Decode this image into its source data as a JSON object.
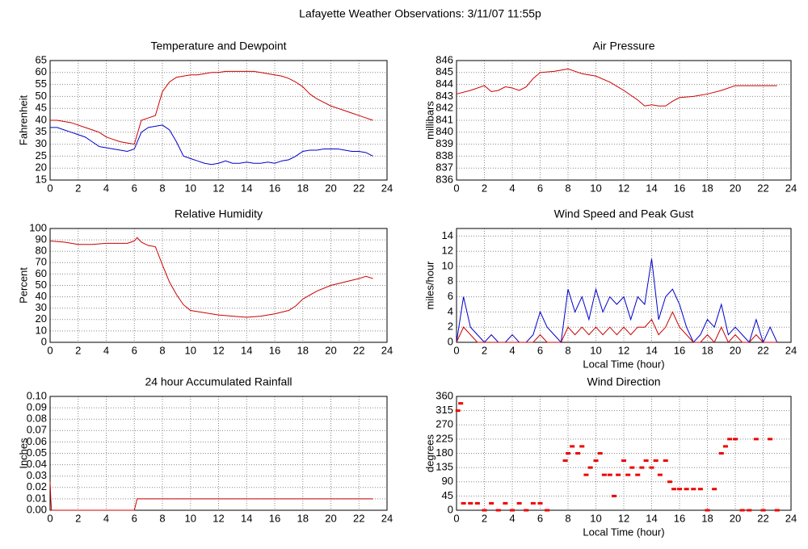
{
  "title": "Lafayette Weather Observations: 3/11/07 11:55p",
  "chart_data": [
    {
      "type": "line",
      "title": "Temperature and Dewpoint",
      "ylabel": "Fahrenheit",
      "x": [
        0,
        0.5,
        1,
        1.5,
        2,
        2.5,
        3,
        3.5,
        4,
        4.5,
        5,
        5.5,
        6,
        6.5,
        7,
        7.5,
        8,
        8.5,
        9,
        9.5,
        10,
        10.5,
        11,
        11.5,
        12,
        12.5,
        13,
        13.5,
        14,
        14.5,
        15,
        15.5,
        16,
        16.5,
        17,
        17.5,
        18,
        18.5,
        19,
        19.5,
        20,
        20.5,
        21,
        21.5,
        22,
        22.5,
        23
      ],
      "series": [
        {
          "color": "#cc0000",
          "values": [
            40,
            40,
            39.5,
            39,
            38,
            37,
            36,
            35,
            33,
            32,
            31,
            30.5,
            30,
            40,
            41,
            42,
            52,
            56,
            58,
            58.5,
            59,
            59,
            59.5,
            60,
            60,
            60.5,
            60.5,
            60.5,
            60.5,
            60.5,
            60,
            59.5,
            59,
            58.5,
            57.5,
            56,
            54,
            51,
            49,
            47.5,
            46,
            45,
            44,
            43,
            42,
            41,
            40
          ]
        },
        {
          "color": "#0000cc",
          "values": [
            37,
            37,
            36,
            35,
            34,
            33,
            31,
            29,
            28.5,
            28,
            27.5,
            27,
            28,
            35,
            37,
            37.5,
            38,
            36,
            31,
            25,
            24,
            23,
            22,
            21.5,
            22,
            23,
            22,
            22,
            22.5,
            22,
            22,
            22.5,
            22,
            23,
            23.5,
            25,
            27,
            27.5,
            27.5,
            28,
            28,
            28,
            27.5,
            27,
            27,
            26.5,
            25
          ]
        }
      ],
      "xlim": [
        0,
        24
      ],
      "xticks": [
        0,
        2,
        4,
        6,
        8,
        10,
        12,
        14,
        16,
        18,
        20,
        22,
        24
      ],
      "ylim": [
        15,
        65
      ],
      "yticks": [
        15,
        20,
        25,
        30,
        35,
        40,
        45,
        50,
        55,
        60,
        65
      ],
      "grid": true
    },
    {
      "type": "line",
      "title": "Air Pressure",
      "ylabel": "millibars",
      "x": [
        0,
        1,
        2,
        2.5,
        3,
        3.5,
        4,
        4.5,
        5,
        5.5,
        6,
        7,
        8,
        8.5,
        9,
        10,
        11,
        12,
        13,
        13.5,
        14,
        14.5,
        15,
        15.5,
        16,
        17,
        18,
        19,
        20,
        21,
        22,
        23
      ],
      "series": [
        {
          "color": "#cc0000",
          "values": [
            843.2,
            843.5,
            843.9,
            843.4,
            843.5,
            843.8,
            843.7,
            843.5,
            843.8,
            844.5,
            845.0,
            845.1,
            845.3,
            845.1,
            844.9,
            844.7,
            844.2,
            843.5,
            842.7,
            842.2,
            842.3,
            842.2,
            842.2,
            842.6,
            842.9,
            843.0,
            843.2,
            843.5,
            843.9,
            843.9,
            843.9,
            843.9
          ]
        }
      ],
      "xlim": [
        0,
        24
      ],
      "xticks": [
        0,
        2,
        4,
        6,
        8,
        10,
        12,
        14,
        16,
        18,
        20,
        22,
        24
      ],
      "ylim": [
        836,
        846
      ],
      "yticks": [
        836,
        837,
        838,
        839,
        840,
        841,
        842,
        843,
        844,
        845,
        846
      ],
      "grid": true
    },
    {
      "type": "line",
      "title": "Relative Humidity",
      "ylabel": "Percent",
      "x": [
        0,
        1,
        2,
        3,
        4,
        5,
        5.5,
        6,
        6.2,
        6.5,
        7,
        7.5,
        8,
        8.5,
        9,
        9.5,
        10,
        11,
        12,
        13,
        14,
        15,
        16,
        17,
        17.5,
        18,
        19,
        20,
        21,
        22,
        22.5,
        23
      ],
      "series": [
        {
          "color": "#cc0000",
          "values": [
            89,
            88,
            86,
            86,
            87,
            87,
            87,
            89,
            92,
            88,
            85,
            84,
            68,
            53,
            42,
            33,
            28,
            26,
            24,
            23,
            22,
            23,
            25,
            28,
            32,
            38,
            45,
            50,
            53,
            56,
            58,
            56
          ]
        }
      ],
      "xlim": [
        0,
        24
      ],
      "xticks": [
        0,
        2,
        4,
        6,
        8,
        10,
        12,
        14,
        16,
        18,
        20,
        22,
        24
      ],
      "ylim": [
        0,
        100
      ],
      "yticks": [
        0,
        10,
        20,
        30,
        40,
        50,
        60,
        70,
        80,
        90,
        100
      ],
      "grid": true
    },
    {
      "type": "line",
      "title": "Wind Speed and Peak Gust",
      "ylabel": "miles/hour",
      "xlabel": "Local Time (hour)",
      "x": [
        0,
        0.5,
        1,
        1.5,
        2,
        2.5,
        3,
        3.5,
        4,
        4.5,
        5,
        5.5,
        6,
        6.5,
        7,
        7.5,
        8,
        8.5,
        9,
        9.5,
        10,
        10.5,
        11,
        11.5,
        12,
        12.5,
        13,
        13.5,
        14,
        14.5,
        15,
        15.5,
        16,
        16.5,
        17,
        17.5,
        18,
        18.5,
        19,
        19.5,
        20,
        20.5,
        21,
        21.5,
        22,
        22.5,
        23
      ],
      "series": [
        {
          "color": "#0000cc",
          "values": [
            0,
            6,
            2,
            1,
            0,
            1,
            0,
            0,
            1,
            0,
            0,
            1,
            4,
            2,
            1,
            0,
            7,
            4,
            6,
            3,
            7,
            4,
            6,
            5,
            6,
            3,
            6,
            5,
            11,
            3,
            6,
            7,
            5,
            2,
            0,
            1,
            3,
            2,
            5,
            1,
            2,
            1,
            0,
            3,
            0,
            2,
            0
          ]
        },
        {
          "color": "#cc0000",
          "values": [
            0,
            2,
            1,
            0,
            0,
            0,
            0,
            0,
            0,
            0,
            0,
            0,
            1,
            0,
            0,
            0,
            2,
            1,
            2,
            1,
            2,
            1,
            2,
            1,
            2,
            1,
            2,
            2,
            3,
            1,
            2,
            4,
            2,
            1,
            0,
            0,
            1,
            0,
            2,
            0,
            1,
            0,
            0,
            1,
            0,
            0,
            0
          ]
        }
      ],
      "xlim": [
        0,
        24
      ],
      "xticks": [
        0,
        2,
        4,
        6,
        8,
        10,
        12,
        14,
        16,
        18,
        20,
        22,
        24
      ],
      "ylim": [
        0,
        15
      ],
      "yticks": [
        0,
        2,
        4,
        6,
        8,
        10,
        12,
        14
      ],
      "grid": true
    },
    {
      "type": "line",
      "title": "24 hour Accumulated Rainfall",
      "ylabel": "Inches",
      "x": [
        0,
        0.05,
        0.1,
        6,
        6.2,
        23
      ],
      "series": [
        {
          "color": "#cc0000",
          "values": [
            0.025,
            0.01,
            0,
            0,
            0.01,
            0.01
          ]
        }
      ],
      "xlim": [
        0,
        24
      ],
      "xticks": [
        0,
        2,
        4,
        6,
        8,
        10,
        12,
        14,
        16,
        18,
        20,
        22,
        24
      ],
      "ylim": [
        0,
        0.1
      ],
      "yticks": [
        {
          "value": 0,
          "label": "0.00"
        },
        {
          "value": 0.01,
          "label": "0.01"
        },
        {
          "value": 0.02,
          "label": "0.02"
        },
        {
          "value": 0.03,
          "label": "0.03"
        },
        {
          "value": 0.04,
          "label": "0.04"
        },
        {
          "value": 0.05,
          "label": "0.05"
        },
        {
          "value": 0.06,
          "label": "0.06"
        },
        {
          "value": 0.07,
          "label": "0.07"
        },
        {
          "value": 0.08,
          "label": "0.08"
        },
        {
          "value": 0.09,
          "label": "0.09"
        },
        {
          "value": 0.1,
          "label": "0.10"
        }
      ],
      "grid": true
    },
    {
      "type": "scatter",
      "title": "Wind Direction",
      "ylabel": "degrees",
      "xlabel": "Local Time (hour)",
      "x": [
        0.1,
        0.3,
        0.5,
        1,
        1.5,
        2,
        2.5,
        3,
        3.5,
        4,
        4.5,
        5,
        5.5,
        6,
        6.5,
        7.8,
        8,
        8.3,
        8.7,
        9,
        9.3,
        9.6,
        10,
        10.3,
        10.6,
        11,
        11.3,
        11.6,
        12,
        12.3,
        12.6,
        13,
        13.3,
        13.6,
        14,
        14.3,
        14.6,
        15,
        15.3,
        15.6,
        16,
        16.5,
        17,
        17.5,
        18,
        18.5,
        19,
        19.3,
        19.6,
        20,
        20.5,
        21,
        21.5,
        22,
        22.5,
        23
      ],
      "series": [
        {
          "color": "#ee0000",
          "values": [
            315,
            338,
            22,
            22,
            22,
            0,
            22,
            0,
            22,
            0,
            22,
            0,
            22,
            22,
            0,
            157,
            180,
            202,
            180,
            202,
            112,
            135,
            157,
            180,
            112,
            112,
            45,
            112,
            157,
            112,
            135,
            112,
            135,
            157,
            135,
            157,
            112,
            157,
            90,
            67,
            67,
            67,
            67,
            67,
            0,
            67,
            180,
            202,
            225,
            225,
            0,
            0,
            225,
            0,
            225,
            0
          ]
        }
      ],
      "xlim": [
        0,
        24
      ],
      "xticks": [
        0,
        2,
        4,
        6,
        8,
        10,
        12,
        14,
        16,
        18,
        20,
        22,
        24
      ],
      "ylim": [
        0,
        360
      ],
      "yticks": [
        0,
        45,
        90,
        135,
        180,
        225,
        270,
        315,
        360
      ],
      "grid": true
    }
  ]
}
